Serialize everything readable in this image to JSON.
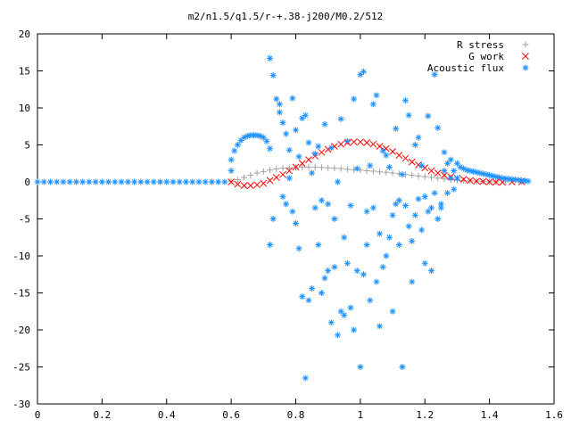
{
  "chart_data": {
    "type": "scatter",
    "title": "m2/n1.5/q1.5/r-+.38-j200/M0.2/512",
    "xlabel": "",
    "ylabel": "",
    "xlim": [
      0,
      1.6
    ],
    "ylim": [
      -30,
      20
    ],
    "x_ticks": [
      "0",
      "0.2",
      "0.4",
      "0.6",
      "0.8",
      "1",
      "1.2",
      "1.4",
      "1.6"
    ],
    "y_ticks": [
      "20",
      "15",
      "10",
      "5",
      "0",
      "-5",
      "-10",
      "-15",
      "-20",
      "-25",
      "-30"
    ],
    "grid": false,
    "legend_position": "top-right",
    "series": [
      {
        "name": "R stress",
        "marker": "+",
        "color": "#a0a0a0",
        "points": [
          [
            0.6,
            0.1
          ],
          [
            0.62,
            0.3
          ],
          [
            0.64,
            0.6
          ],
          [
            0.66,
            0.9
          ],
          [
            0.68,
            1.2
          ],
          [
            0.7,
            1.4
          ],
          [
            0.72,
            1.6
          ],
          [
            0.74,
            1.75
          ],
          [
            0.76,
            1.85
          ],
          [
            0.78,
            1.9
          ],
          [
            0.8,
            1.95
          ],
          [
            0.82,
            2.0
          ],
          [
            0.84,
            2.0
          ],
          [
            0.86,
            2.0
          ],
          [
            0.88,
            1.95
          ],
          [
            0.9,
            1.9
          ],
          [
            0.92,
            1.85
          ],
          [
            0.94,
            1.8
          ],
          [
            0.96,
            1.7
          ],
          [
            0.98,
            1.65
          ],
          [
            1.0,
            1.6
          ],
          [
            1.02,
            1.5
          ],
          [
            1.04,
            1.45
          ],
          [
            1.06,
            1.35
          ],
          [
            1.08,
            1.3
          ],
          [
            1.1,
            1.2
          ],
          [
            1.12,
            1.1
          ],
          [
            1.14,
            1.0
          ],
          [
            1.16,
            0.9
          ],
          [
            1.18,
            0.8
          ],
          [
            1.2,
            0.7
          ],
          [
            1.22,
            0.6
          ],
          [
            1.24,
            0.5
          ],
          [
            1.26,
            0.4
          ],
          [
            1.28,
            0.3
          ],
          [
            1.3,
            0.25
          ],
          [
            1.32,
            0.2
          ],
          [
            1.34,
            0.15
          ],
          [
            1.36,
            0.1
          ],
          [
            1.38,
            0.05
          ],
          [
            1.4,
            0.02
          ],
          [
            1.42,
            0.01
          ],
          [
            1.45,
            0.0
          ],
          [
            1.5,
            0.0
          ]
        ]
      },
      {
        "name": "G work",
        "marker": "x",
        "color": "#ff0000",
        "points": [
          [
            0.6,
            0.0
          ],
          [
            0.62,
            -0.3
          ],
          [
            0.64,
            -0.5
          ],
          [
            0.66,
            -0.5
          ],
          [
            0.68,
            -0.4
          ],
          [
            0.7,
            -0.2
          ],
          [
            0.72,
            0.2
          ],
          [
            0.74,
            0.6
          ],
          [
            0.76,
            1.0
          ],
          [
            0.78,
            1.5
          ],
          [
            0.8,
            2.0
          ],
          [
            0.82,
            2.5
          ],
          [
            0.84,
            3.0
          ],
          [
            0.86,
            3.5
          ],
          [
            0.88,
            4.0
          ],
          [
            0.9,
            4.4
          ],
          [
            0.92,
            4.8
          ],
          [
            0.94,
            5.1
          ],
          [
            0.96,
            5.3
          ],
          [
            0.98,
            5.4
          ],
          [
            1.0,
            5.4
          ],
          [
            1.02,
            5.3
          ],
          [
            1.04,
            5.1
          ],
          [
            1.06,
            4.8
          ],
          [
            1.08,
            4.5
          ],
          [
            1.1,
            4.1
          ],
          [
            1.12,
            3.6
          ],
          [
            1.14,
            3.2
          ],
          [
            1.16,
            2.7
          ],
          [
            1.18,
            2.3
          ],
          [
            1.2,
            1.9
          ],
          [
            1.22,
            1.5
          ],
          [
            1.24,
            1.2
          ],
          [
            1.26,
            0.9
          ],
          [
            1.28,
            0.7
          ],
          [
            1.3,
            0.5
          ],
          [
            1.32,
            0.35
          ],
          [
            1.34,
            0.2
          ],
          [
            1.36,
            0.1
          ],
          [
            1.38,
            0.05
          ],
          [
            1.4,
            0.0
          ],
          [
            1.42,
            -0.05
          ],
          [
            1.44,
            -0.05
          ],
          [
            1.47,
            0.0
          ],
          [
            1.5,
            0.0
          ]
        ]
      },
      {
        "name": "Acoustic flux",
        "marker": "*",
        "color": "#1e90ff",
        "points": [
          [
            0.0,
            0.0
          ],
          [
            0.02,
            0.0
          ],
          [
            0.04,
            0.0
          ],
          [
            0.06,
            0.0
          ],
          [
            0.08,
            0.0
          ],
          [
            0.1,
            0.0
          ],
          [
            0.12,
            0.0
          ],
          [
            0.14,
            0.0
          ],
          [
            0.16,
            0.0
          ],
          [
            0.18,
            0.0
          ],
          [
            0.2,
            0.0
          ],
          [
            0.22,
            0.0
          ],
          [
            0.24,
            0.0
          ],
          [
            0.26,
            0.0
          ],
          [
            0.28,
            0.0
          ],
          [
            0.3,
            0.0
          ],
          [
            0.32,
            0.0
          ],
          [
            0.34,
            0.0
          ],
          [
            0.36,
            0.0
          ],
          [
            0.38,
            0.0
          ],
          [
            0.4,
            0.0
          ],
          [
            0.42,
            0.0
          ],
          [
            0.44,
            0.0
          ],
          [
            0.46,
            0.0
          ],
          [
            0.48,
            0.0
          ],
          [
            0.5,
            0.0
          ],
          [
            0.52,
            0.0
          ],
          [
            0.54,
            0.0
          ],
          [
            0.56,
            0.0
          ],
          [
            0.58,
            0.0
          ],
          [
            0.6,
            1.5
          ],
          [
            0.6,
            3.0
          ],
          [
            0.61,
            4.2
          ],
          [
            0.62,
            5.0
          ],
          [
            0.63,
            5.6
          ],
          [
            0.64,
            6.0
          ],
          [
            0.65,
            6.2
          ],
          [
            0.66,
            6.3
          ],
          [
            0.67,
            6.3
          ],
          [
            0.68,
            6.3
          ],
          [
            0.69,
            6.2
          ],
          [
            0.7,
            6.0
          ],
          [
            0.71,
            5.5
          ],
          [
            0.72,
            4.5
          ],
          [
            0.72,
            16.7
          ],
          [
            0.72,
            -8.5
          ],
          [
            0.73,
            -5.0
          ],
          [
            0.73,
            14.4
          ],
          [
            0.74,
            11.2
          ],
          [
            0.75,
            10.5
          ],
          [
            0.75,
            9.4
          ],
          [
            0.76,
            8.0
          ],
          [
            0.76,
            -2.0
          ],
          [
            0.77,
            6.5
          ],
          [
            0.77,
            -3.0
          ],
          [
            0.78,
            4.3
          ],
          [
            0.78,
            0.5
          ],
          [
            0.79,
            11.3
          ],
          [
            0.79,
            -4.0
          ],
          [
            0.8,
            7.0
          ],
          [
            0.8,
            -5.6
          ],
          [
            0.81,
            -9.0
          ],
          [
            0.81,
            3.4
          ],
          [
            0.82,
            8.6
          ],
          [
            0.82,
            -15.5
          ],
          [
            0.83,
            -26.5
          ],
          [
            0.83,
            9.0
          ],
          [
            0.84,
            5.3
          ],
          [
            0.84,
            -16.0
          ],
          [
            0.85,
            1.2
          ],
          [
            0.85,
            -14.4
          ],
          [
            0.86,
            -3.5
          ],
          [
            0.86,
            3.8
          ],
          [
            0.87,
            -8.5
          ],
          [
            0.87,
            4.8
          ],
          [
            0.88,
            -15.0
          ],
          [
            0.88,
            -2.5
          ],
          [
            0.89,
            -13.0
          ],
          [
            0.89,
            7.8
          ],
          [
            0.9,
            -3.0
          ],
          [
            0.9,
            -12.0
          ],
          [
            0.91,
            -19.0
          ],
          [
            0.91,
            4.6
          ],
          [
            0.92,
            -11.5
          ],
          [
            0.92,
            -5.0
          ],
          [
            0.93,
            -20.7
          ],
          [
            0.93,
            0.0
          ],
          [
            0.94,
            -17.5
          ],
          [
            0.94,
            8.5
          ],
          [
            0.95,
            -18.0
          ],
          [
            0.95,
            -7.5
          ],
          [
            0.96,
            -11.0
          ],
          [
            0.96,
            5.5
          ],
          [
            0.97,
            -17.0
          ],
          [
            0.97,
            -3.2
          ],
          [
            0.98,
            11.2
          ],
          [
            0.98,
            -20.0
          ],
          [
            0.99,
            -12.0
          ],
          [
            0.99,
            1.8
          ],
          [
            1.0,
            -25.0
          ],
          [
            1.0,
            14.5
          ],
          [
            1.01,
            -12.5
          ],
          [
            1.01,
            14.9
          ],
          [
            1.02,
            -8.5
          ],
          [
            1.02,
            -4.0
          ],
          [
            1.03,
            -16.0
          ],
          [
            1.03,
            2.2
          ],
          [
            1.04,
            -3.5
          ],
          [
            1.04,
            10.5
          ],
          [
            1.05,
            -13.5
          ],
          [
            1.05,
            11.7
          ],
          [
            1.06,
            -7.0
          ],
          [
            1.06,
            -19.5
          ],
          [
            1.07,
            4.2
          ],
          [
            1.07,
            -11.5
          ],
          [
            1.08,
            -10.0
          ],
          [
            1.08,
            3.6
          ],
          [
            1.09,
            -7.5
          ],
          [
            1.09,
            2.0
          ],
          [
            1.1,
            -17.5
          ],
          [
            1.1,
            -4.5
          ],
          [
            1.11,
            7.2
          ],
          [
            1.11,
            -3.0
          ],
          [
            1.12,
            -2.5
          ],
          [
            1.12,
            -8.5
          ],
          [
            1.13,
            1.0
          ],
          [
            1.13,
            -25.0
          ],
          [
            1.14,
            -3.2
          ],
          [
            1.14,
            11.0
          ],
          [
            1.15,
            9.0
          ],
          [
            1.15,
            -6.0
          ],
          [
            1.16,
            -8.0
          ],
          [
            1.16,
            -13.5
          ],
          [
            1.17,
            5.0
          ],
          [
            1.17,
            -4.5
          ],
          [
            1.18,
            -2.3
          ],
          [
            1.18,
            6.0
          ],
          [
            1.19,
            -6.5
          ],
          [
            1.19,
            2.2
          ],
          [
            1.2,
            -11.0
          ],
          [
            1.2,
            -2.0
          ],
          [
            1.21,
            -4.0
          ],
          [
            1.21,
            8.9
          ],
          [
            1.22,
            -12.0
          ],
          [
            1.22,
            -3.5
          ],
          [
            1.23,
            -1.5
          ],
          [
            1.23,
            14.5
          ],
          [
            1.24,
            -5.0
          ],
          [
            1.24,
            7.3
          ],
          [
            1.25,
            -3.5
          ],
          [
            1.25,
            -3.0
          ],
          [
            1.26,
            4.0
          ],
          [
            1.26,
            1.5
          ],
          [
            1.27,
            -1.5
          ],
          [
            1.27,
            2.5
          ],
          [
            1.28,
            3.0
          ],
          [
            1.28,
            0.5
          ],
          [
            1.29,
            1.5
          ],
          [
            1.29,
            -1.0
          ],
          [
            1.3,
            0.5
          ],
          [
            1.3,
            2.5
          ],
          [
            1.31,
            2.0
          ],
          [
            1.32,
            1.8
          ],
          [
            1.33,
            1.6
          ],
          [
            1.34,
            1.5
          ],
          [
            1.35,
            1.4
          ],
          [
            1.36,
            1.3
          ],
          [
            1.37,
            1.2
          ],
          [
            1.38,
            1.1
          ],
          [
            1.39,
            1.0
          ],
          [
            1.4,
            0.9
          ],
          [
            1.41,
            0.8
          ],
          [
            1.42,
            0.7
          ],
          [
            1.43,
            0.6
          ],
          [
            1.44,
            0.5
          ],
          [
            1.45,
            0.45
          ],
          [
            1.46,
            0.4
          ],
          [
            1.47,
            0.35
          ],
          [
            1.48,
            0.3
          ],
          [
            1.49,
            0.25
          ],
          [
            1.5,
            0.2
          ],
          [
            1.51,
            0.15
          ],
          [
            1.52,
            0.1
          ]
        ]
      }
    ]
  }
}
